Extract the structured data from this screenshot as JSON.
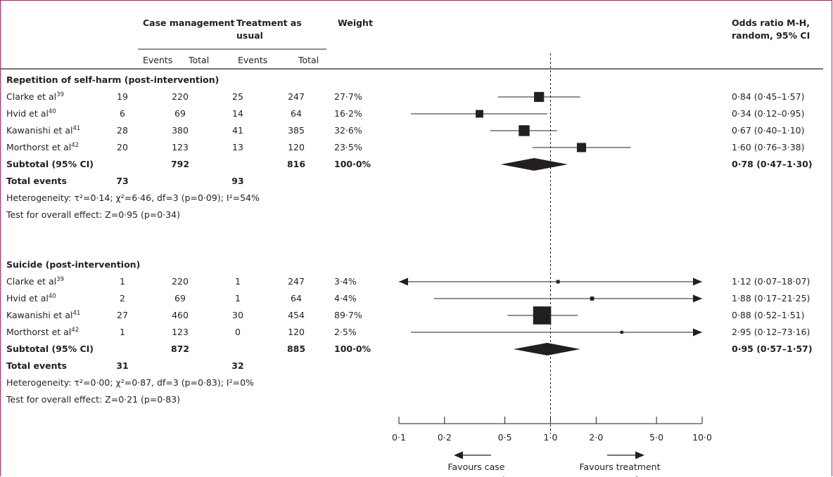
{
  "headers": {
    "group1": "Case management",
    "group2_line1": "Treatment as",
    "group2_line2": "usual",
    "weight": "Weight",
    "or_line1": "Odds ratio M-H,",
    "or_line2": "random, 95% CI",
    "events": "Events",
    "total": "Total"
  },
  "chart_data": {
    "type": "forest",
    "x_scale": "log",
    "xlim": [
      0.1,
      10.0
    ],
    "x_ticks": [
      {
        "value": 0.1,
        "label": "0·1"
      },
      {
        "value": 0.2,
        "label": "0·2"
      },
      {
        "value": 0.5,
        "label": "0·5"
      },
      {
        "value": 1.0,
        "label": "1·0"
      },
      {
        "value": 2.0,
        "label": "2·0"
      },
      {
        "value": 5.0,
        "label": "5·0"
      },
      {
        "value": 10.0,
        "label": "10·0"
      }
    ],
    "null_line": 1.0,
    "favours_left": [
      "Favours case",
      "management"
    ],
    "favours_right": [
      "Favours treatment",
      "as usual"
    ],
    "groups": [
      {
        "title": "Repetition of self-harm (post-intervention)",
        "studies": [
          {
            "study": "Clarke et al",
            "ref": "39",
            "e1": "19",
            "t1": "220",
            "e2": "25",
            "t2": "247",
            "weight": "27·7%",
            "weight_value": 27.7,
            "ci_text": "0·84 (0·45–1·57)",
            "or": 0.84,
            "lo": 0.45,
            "hi": 1.57
          },
          {
            "study": "Hvid et al",
            "ref": "40",
            "e1": "6",
            "t1": "69",
            "e2": "14",
            "t2": "64",
            "weight": "16·2%",
            "weight_value": 16.2,
            "ci_text": "0·34 (0·12–0·95)",
            "or": 0.34,
            "lo": 0.12,
            "hi": 0.95
          },
          {
            "study": "Kawanishi et al",
            "ref": "41",
            "e1": "28",
            "t1": "380",
            "e2": "41",
            "t2": "385",
            "weight": "32·6%",
            "weight_value": 32.6,
            "ci_text": "0·67 (0·40–1·10)",
            "or": 0.67,
            "lo": 0.4,
            "hi": 1.1
          },
          {
            "study": "Morthorst et al",
            "ref": "42",
            "e1": "20",
            "t1": "123",
            "e2": "13",
            "t2": "120",
            "weight": "23·5%",
            "weight_value": 23.5,
            "ci_text": "1·60 (0·76–3·38)",
            "or": 1.6,
            "lo": 0.76,
            "hi": 3.38
          }
        ],
        "subtotal": {
          "label": "Subtotal (95% CI)",
          "t1": "792",
          "t2": "816",
          "weight": "100·0%",
          "ci_text": "0·78 (0·47–1·30)",
          "or": 0.78,
          "lo": 0.47,
          "hi": 1.3
        },
        "total_events": {
          "label": "Total events",
          "e1": "73",
          "e2": "93"
        },
        "heterogeneity": "Heterogeneity: τ²=0·14; χ²=6·46, df=3 (p=0·09); I²=54%",
        "overall_effect": "Test for overall effect: Z=0·95 (p=0·34)"
      },
      {
        "title": "Suicide (post-intervention)",
        "studies": [
          {
            "study": "Clarke et al",
            "ref": "39",
            "e1": "1",
            "t1": "220",
            "e2": "1",
            "t2": "247",
            "weight": "3·4%",
            "weight_value": 3.4,
            "ci_text": "1·12 (0·07–18·07)",
            "or": 1.12,
            "lo": 0.07,
            "hi": 18.07
          },
          {
            "study": "Hvid et al",
            "ref": "40",
            "e1": "2",
            "t1": "69",
            "e2": "1",
            "t2": "64",
            "weight": "4·4%",
            "weight_value": 4.4,
            "ci_text": "1·88 (0·17–21·25)",
            "or": 1.88,
            "lo": 0.17,
            "hi": 21.25
          },
          {
            "study": "Kawanishi et al",
            "ref": "41",
            "e1": "27",
            "t1": "460",
            "e2": "30",
            "t2": "454",
            "weight": "89·7%",
            "weight_value": 89.7,
            "ci_text": "0·88 (0·52–1·51)",
            "or": 0.88,
            "lo": 0.52,
            "hi": 1.51
          },
          {
            "study": "Morthorst et al",
            "ref": "42",
            "e1": "1",
            "t1": "123",
            "e2": "0",
            "t2": "120",
            "weight": "2·5%",
            "weight_value": 2.5,
            "ci_text": "2·95 (0·12–73·16)",
            "or": 2.95,
            "lo": 0.12,
            "hi": 73.16
          }
        ],
        "subtotal": {
          "label": "Subtotal (95% CI)",
          "t1": "872",
          "t2": "885",
          "weight": "100·0%",
          "ci_text": "0·95 (0·57–1·57)",
          "or": 0.95,
          "lo": 0.57,
          "hi": 1.57
        },
        "total_events": {
          "label": "Total events",
          "e1": "31",
          "e2": "32"
        },
        "heterogeneity": "Heterogeneity: τ²=0·00; χ²=0·87, df=3 (p=0·83); I²=0%",
        "overall_effect": "Test for overall effect: Z=0·21 (p=0·83)"
      }
    ]
  }
}
